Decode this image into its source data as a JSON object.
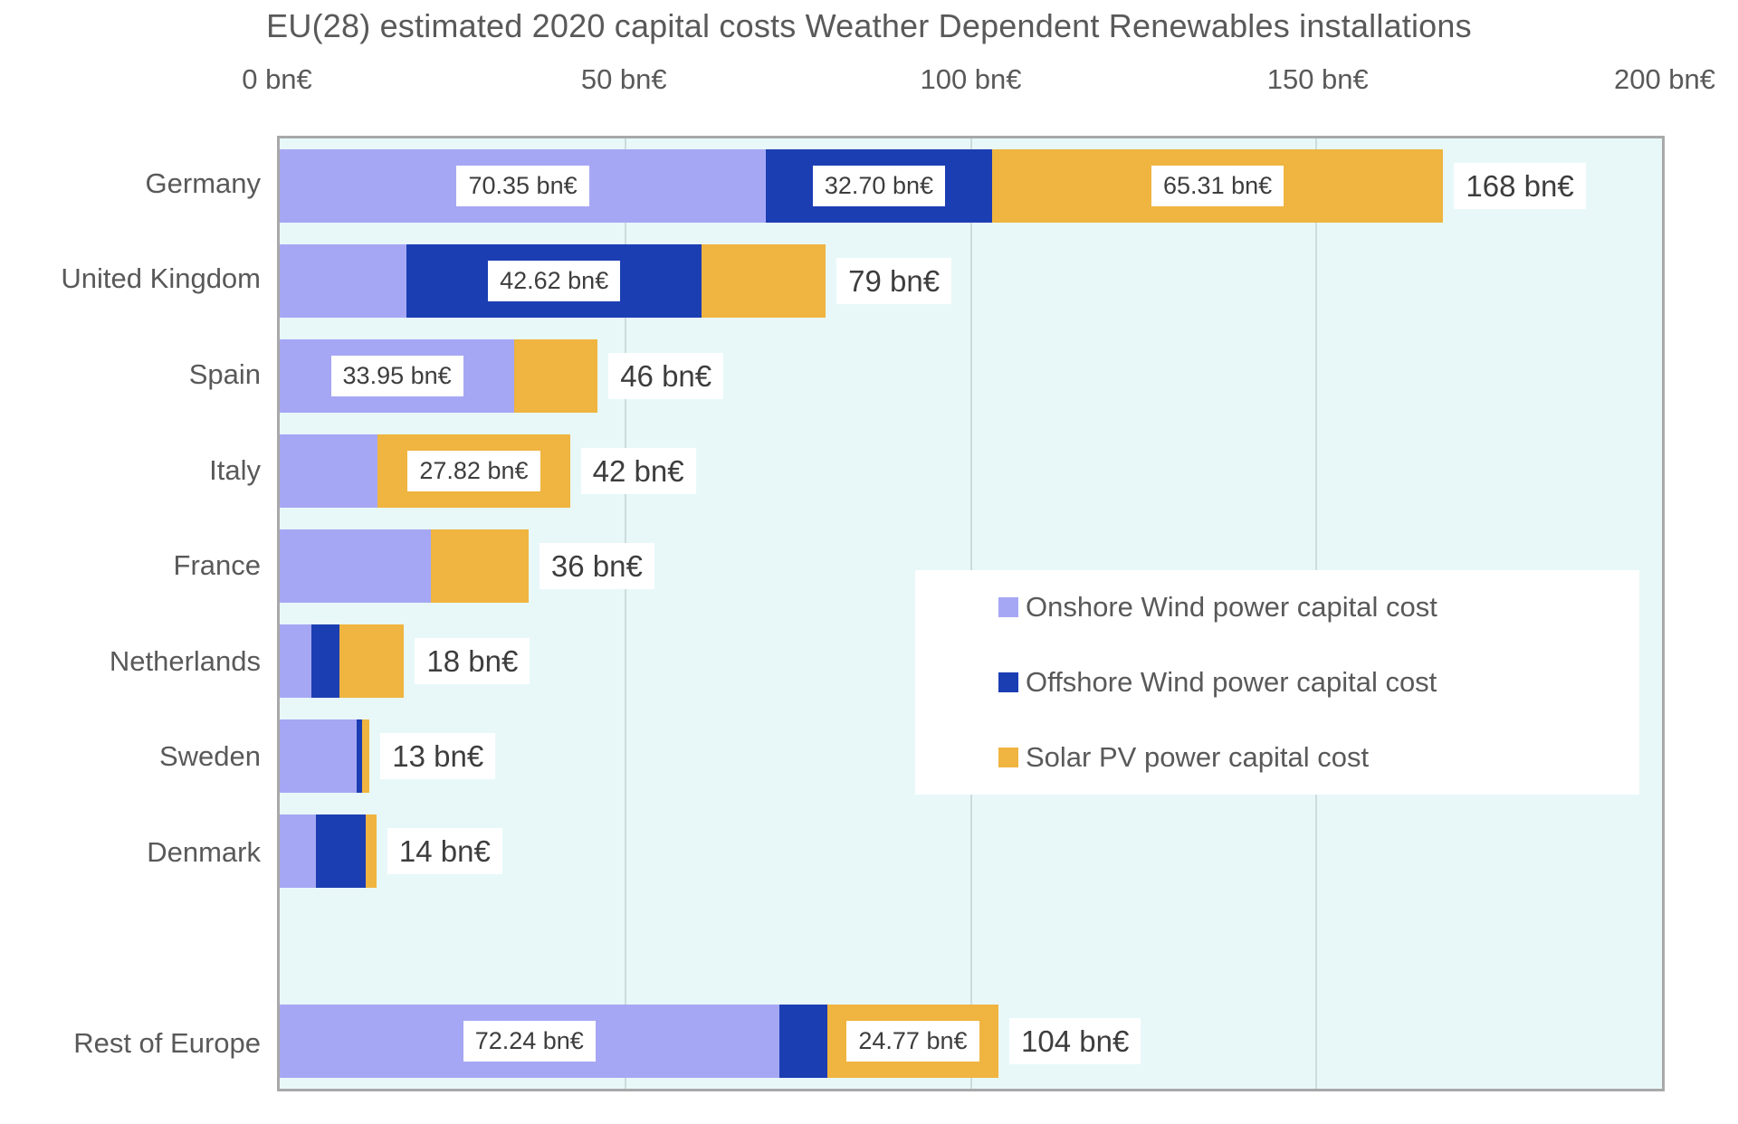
{
  "title": "EU(28) estimated 2020 capital costs Weather Dependent Renewables installations",
  "colors": {
    "onshore": "#a6a7f4",
    "offshore": "#1c3eb3",
    "solar": "#f0b440",
    "plot_background": "#e8f8f9",
    "plot_border": "#a9a9a9",
    "gridline": "#ccdcdc",
    "text": "#595959",
    "value_text": "#3d3d3d"
  },
  "chart_data": {
    "type": "bar",
    "orientation": "horizontal",
    "stacked": true,
    "title": "EU(28) estimated 2020 capital costs Weather Dependent Renewables installations",
    "xlabel": "",
    "ylabel": "",
    "unit": "bn€",
    "x_axis": {
      "max": 200,
      "ticks": [
        {
          "label": "0 bn€",
          "value": 0
        },
        {
          "label": "50 bn€",
          "value": 50
        },
        {
          "label": "100 bn€",
          "value": 100
        },
        {
          "label": "150 bn€",
          "value": 150
        },
        {
          "label": "200 bn€",
          "value": 200
        }
      ],
      "gridlines_at": [
        50,
        100,
        150
      ]
    },
    "series": [
      {
        "name": "Onshore Wind power capital cost",
        "key": "onshore",
        "color": "#a6a7f4"
      },
      {
        "name": "Offshore Wind power capital cost",
        "key": "offshore",
        "color": "#1c3eb3"
      },
      {
        "name": "Solar PV  power capital cost",
        "key": "solar",
        "color": "#f0b440"
      }
    ],
    "rows": [
      {
        "category": "Germany",
        "values": {
          "onshore": 70.35,
          "offshore": 32.7,
          "solar": 65.31
        },
        "labels": {
          "onshore": "70.35 bn€",
          "offshore": "32.70 bn€",
          "solar": "65.31 bn€"
        },
        "total_label": "168 bn€"
      },
      {
        "category": "United Kingdom",
        "values": {
          "onshore": 18.4,
          "offshore": 42.62,
          "solar": 17.98
        },
        "labels": {
          "offshore": "42.62 bn€"
        },
        "total_label": "79 bn€"
      },
      {
        "category": "Spain",
        "values": {
          "onshore": 33.95,
          "offshore": 0,
          "solar": 12.05
        },
        "labels": {
          "onshore": "33.95 bn€"
        },
        "total_label": "46 bn€"
      },
      {
        "category": "Italy",
        "values": {
          "onshore": 14.18,
          "offshore": 0,
          "solar": 27.82
        },
        "labels": {
          "solar": "27.82 bn€"
        },
        "total_label": "42 bn€"
      },
      {
        "category": "France",
        "values": {
          "onshore": 21.9,
          "offshore": 0,
          "solar": 14.1
        },
        "labels": {},
        "total_label": "36 bn€"
      },
      {
        "category": "Netherlands",
        "values": {
          "onshore": 4.6,
          "offshore": 4.1,
          "solar": 9.3
        },
        "labels": {},
        "total_label": "18 bn€"
      },
      {
        "category": "Sweden",
        "values": {
          "onshore": 11.1,
          "offshore": 0.8,
          "solar": 1.1
        },
        "labels": {},
        "total_label": "13 bn€"
      },
      {
        "category": "Denmark",
        "values": {
          "onshore": 5.3,
          "offshore": 7.2,
          "solar": 1.5
        },
        "labels": {},
        "total_label": "14 bn€"
      },
      {
        "category": "",
        "values": {
          "onshore": 0,
          "offshore": 0,
          "solar": 0
        },
        "labels": {},
        "total_label": "",
        "spacer": true
      },
      {
        "category": "Rest of Europe",
        "values": {
          "onshore": 72.24,
          "offshore": 6.99,
          "solar": 24.77
        },
        "labels": {
          "onshore": "72.24 bn€",
          "solar": "24.77 bn€"
        },
        "total_label": "104 bn€"
      }
    ],
    "legend": {
      "position": "middle-right",
      "items": [
        "Onshore Wind power capital cost",
        "Offshore Wind power capital cost",
        "Solar PV  power capital cost"
      ]
    }
  }
}
